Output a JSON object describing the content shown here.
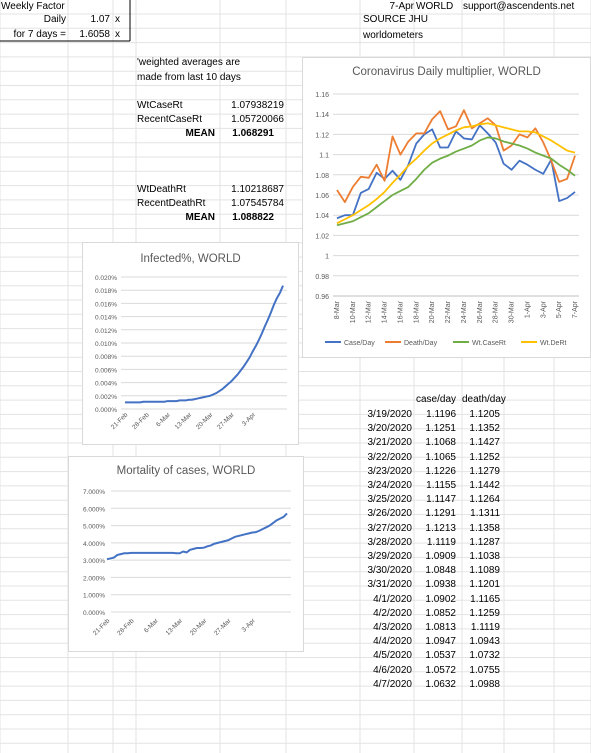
{
  "sheet": {
    "weekly_factor_label": "Weekly Factor",
    "daily_label": "Daily",
    "daily_value": "1.07",
    "daily_unit": "x",
    "week_label": "for 7 days =",
    "week_value": "1.6058",
    "week_unit": "x",
    "date": "7-Apr",
    "region": "WORLD",
    "email": "support@ascendents.net",
    "source": "SOURCE JHU",
    "source2": "worldometers",
    "note1": "'weighted averages are",
    "note2": "made from last 10 days",
    "wtcase_label": "WtCaseRt",
    "wtcase_value": "1.07938219",
    "recentcase_label": "RecentCaseRt",
    "recentcase_value": "1.05720066",
    "mean_label": "MEAN",
    "mean_case": "1.068291",
    "wtdeath_label": "WtDeathRt",
    "wtdeath_value": "1.10218687",
    "recentdeath_label": "RecentDeathRt",
    "recentdeath_value": "1.07545784",
    "mean_death": "1.088822",
    "table_headers": [
      "case/day",
      "death/day"
    ],
    "table_rows": [
      [
        "3/19/2020",
        "1.1196",
        "1.1205"
      ],
      [
        "3/20/2020",
        "1.1251",
        "1.1352"
      ],
      [
        "3/21/2020",
        "1.1068",
        "1.1427"
      ],
      [
        "3/22/2020",
        "1.1065",
        "1.1252"
      ],
      [
        "3/23/2020",
        "1.1226",
        "1.1279"
      ],
      [
        "3/24/2020",
        "1.1155",
        "1.1442"
      ],
      [
        "3/25/2020",
        "1.1147",
        "1.1264"
      ],
      [
        "3/26/2020",
        "1.1291",
        "1.1311"
      ],
      [
        "3/27/2020",
        "1.1213",
        "1.1358"
      ],
      [
        "3/28/2020",
        "1.1119",
        "1.1287"
      ],
      [
        "3/29/2020",
        "1.0909",
        "1.1038"
      ],
      [
        "3/30/2020",
        "1.0848",
        "1.1089"
      ],
      [
        "3/31/2020",
        "1.0938",
        "1.1201"
      ],
      [
        "4/1/2020",
        "1.0902",
        "1.1165"
      ],
      [
        "4/2/2020",
        "1.0852",
        "1.1259"
      ],
      [
        "4/3/2020",
        "1.0813",
        "1.1119"
      ],
      [
        "4/4/2020",
        "1.0947",
        "1.0943"
      ],
      [
        "4/5/2020",
        "1.0537",
        "1.0732"
      ],
      [
        "4/6/2020",
        "1.0572",
        "1.0755"
      ],
      [
        "4/7/2020",
        "1.0632",
        "1.0988"
      ]
    ]
  },
  "chart_data": [
    {
      "type": "line",
      "title": "Coronavirus Daily multiplier, WORLD",
      "x": [
        "8-Mar",
        "9-Mar",
        "10-Mar",
        "11-Mar",
        "12-Mar",
        "13-Mar",
        "14-Mar",
        "15-Mar",
        "16-Mar",
        "17-Mar",
        "18-Mar",
        "19-Mar",
        "20-Mar",
        "21-Mar",
        "22-Mar",
        "23-Mar",
        "24-Mar",
        "25-Mar",
        "26-Mar",
        "27-Mar",
        "28-Mar",
        "29-Mar",
        "30-Mar",
        "31-Mar",
        "1-Apr",
        "2-Apr",
        "3-Apr",
        "4-Apr",
        "5-Apr",
        "6-Apr",
        "7-Apr"
      ],
      "x_tick_labels": [
        "8-Mar",
        "10-Mar",
        "12-Mar",
        "14-Mar",
        "16-Mar",
        "18-Mar",
        "20-Mar",
        "22-Mar",
        "24-Mar",
        "26-Mar",
        "28-Mar",
        "30-Mar",
        "1-Apr",
        "3-Apr",
        "5-Apr",
        "7-Apr"
      ],
      "ylim": [
        0.96,
        1.16
      ],
      "y_ticks": [
        0.96,
        0.98,
        1,
        1.02,
        1.04,
        1.06,
        1.08,
        1.1,
        1.12,
        1.14,
        1.16
      ],
      "grid": true,
      "legend": "bottom",
      "colors": {
        "case": "#4472c4",
        "death": "#ed7d31",
        "wtcase": "#70ad47",
        "wtdeath": "#ffc000"
      },
      "series": [
        {
          "name": "Case/Day",
          "values": [
            1.037,
            1.04,
            1.04,
            1.062,
            1.066,
            1.082,
            1.076,
            1.084,
            1.075,
            1.09,
            1.111,
            1.12,
            1.125,
            1.107,
            1.107,
            1.123,
            1.116,
            1.115,
            1.129,
            1.121,
            1.112,
            1.091,
            1.085,
            1.094,
            1.09,
            1.085,
            1.081,
            1.095,
            1.054,
            1.057,
            1.063
          ]
        },
        {
          "name": "Death/Day",
          "values": [
            1.065,
            1.053,
            1.068,
            1.078,
            1.077,
            1.09,
            1.074,
            1.118,
            1.1,
            1.113,
            1.121,
            1.121,
            1.135,
            1.143,
            1.125,
            1.128,
            1.144,
            1.126,
            1.131,
            1.136,
            1.129,
            1.104,
            1.109,
            1.12,
            1.117,
            1.126,
            1.112,
            1.094,
            1.073,
            1.076,
            1.099
          ]
        },
        {
          "name": "Wt.CaseRt",
          "values": [
            1.03,
            1.032,
            1.034,
            1.038,
            1.042,
            1.048,
            1.054,
            1.06,
            1.064,
            1.068,
            1.076,
            1.085,
            1.092,
            1.096,
            1.099,
            1.103,
            1.106,
            1.109,
            1.114,
            1.117,
            1.116,
            1.113,
            1.111,
            1.109,
            1.106,
            1.102,
            1.099,
            1.096,
            1.09,
            1.085,
            1.079
          ]
        },
        {
          "name": "Wt.DeRt",
          "values": [
            1.032,
            1.036,
            1.04,
            1.045,
            1.05,
            1.056,
            1.063,
            1.072,
            1.08,
            1.089,
            1.096,
            1.104,
            1.111,
            1.116,
            1.12,
            1.124,
            1.127,
            1.128,
            1.13,
            1.131,
            1.129,
            1.127,
            1.125,
            1.123,
            1.123,
            1.122,
            1.118,
            1.114,
            1.109,
            1.104,
            1.102
          ]
        }
      ]
    },
    {
      "type": "line",
      "title": "Infected%, WORLD",
      "x_tick_labels": [
        "21-Feb",
        "28-Feb",
        "6-Mar",
        "13-Mar",
        "20-Mar",
        "27-Mar",
        "3-Apr"
      ],
      "ylim": [
        0,
        0.02
      ],
      "y_tick_labels": [
        "0.000%",
        "0.002%",
        "0.004%",
        "0.006%",
        "0.008%",
        "0.010%",
        "0.012%",
        "0.014%",
        "0.016%",
        "0.018%",
        "0.020%"
      ],
      "grid": true,
      "series": [
        {
          "values": [
            0.001,
            0.001,
            0.001,
            0.001,
            0.001,
            0.001,
            0.0011,
            0.0011,
            0.0011,
            0.0011,
            0.0011,
            0.0011,
            0.0011,
            0.0011,
            0.0012,
            0.0012,
            0.0012,
            0.0012,
            0.0013,
            0.0013,
            0.0013,
            0.0014,
            0.0014,
            0.0015,
            0.0016,
            0.0017,
            0.0018,
            0.0019,
            0.002,
            0.0022,
            0.0024,
            0.0027,
            0.003,
            0.0034,
            0.0038,
            0.0042,
            0.0047,
            0.0052,
            0.0058,
            0.0064,
            0.0071,
            0.0078,
            0.0087,
            0.0095,
            0.0104,
            0.0114,
            0.0125,
            0.0135,
            0.0146,
            0.0158,
            0.0168,
            0.0176,
            0.0187
          ]
        }
      ]
    },
    {
      "type": "line",
      "title": "Mortality of cases, WORLD",
      "x_tick_labels": [
        "21-Feb",
        "28-Feb",
        "6-Mar",
        "13-Mar",
        "20-Mar",
        "27-Mar",
        "3-Apr"
      ],
      "ylim": [
        0,
        7
      ],
      "y_tick_labels": [
        "0.000%",
        "1.000%",
        "2.000%",
        "3.000%",
        "4.000%",
        "5.000%",
        "6.000%",
        "7.000%"
      ],
      "grid": true,
      "series": [
        {
          "values": [
            3.05,
            3.1,
            3.15,
            3.3,
            3.35,
            3.4,
            3.4,
            3.42,
            3.42,
            3.42,
            3.42,
            3.42,
            3.42,
            3.42,
            3.42,
            3.42,
            3.42,
            3.42,
            3.42,
            3.42,
            3.4,
            3.4,
            3.5,
            3.45,
            3.6,
            3.65,
            3.7,
            3.7,
            3.72,
            3.8,
            3.85,
            3.95,
            4.0,
            4.05,
            4.1,
            4.15,
            4.25,
            4.35,
            4.4,
            4.45,
            4.5,
            4.55,
            4.6,
            4.62,
            4.7,
            4.8,
            4.9,
            5.0,
            5.15,
            5.3,
            5.4,
            5.5,
            5.7
          ]
        }
      ]
    }
  ]
}
